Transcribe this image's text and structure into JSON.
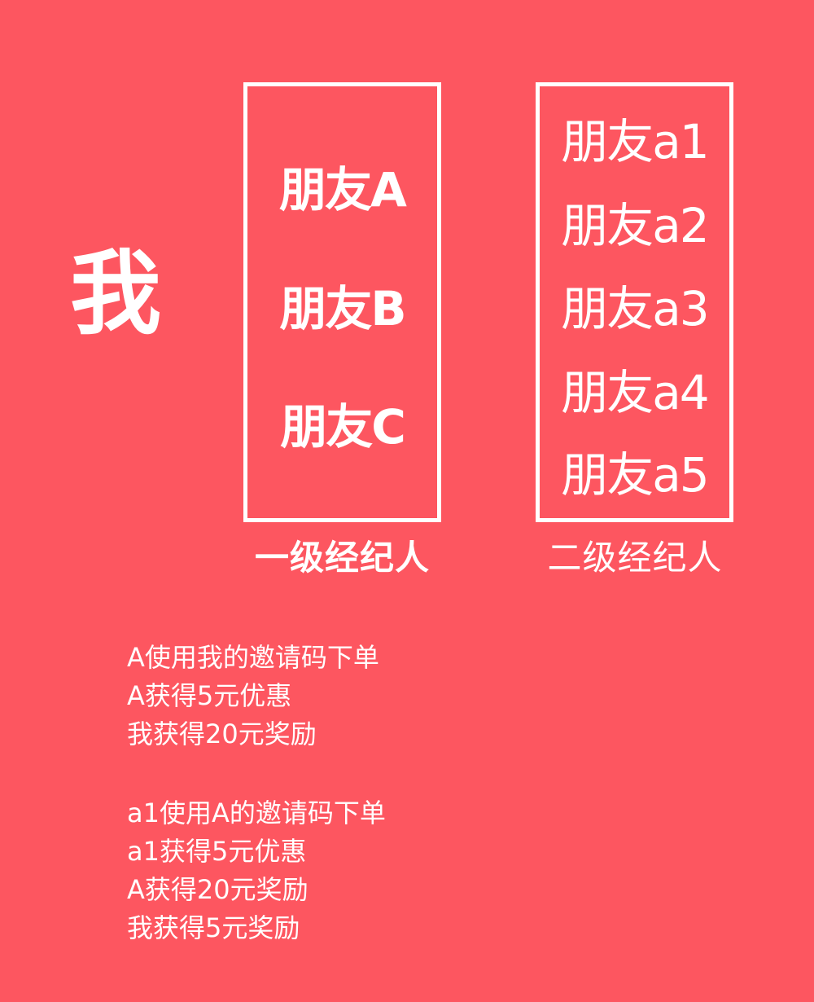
{
  "me_label": "我",
  "level1": {
    "friends": [
      "朋友A",
      "朋友B",
      "朋友C"
    ],
    "caption": "一级经纪人"
  },
  "level2": {
    "friends": [
      "朋友a1",
      "朋友a2",
      "朋友a3",
      "朋友a4",
      "朋友a5"
    ],
    "caption": "二级经纪人"
  },
  "notes_block_1": [
    "A使用我的邀请码下单",
    "A获得5元优惠",
    "我获得20元奖励"
  ],
  "notes_block_2": [
    "a1使用A的邀请码下单",
    "a1获得5元优惠",
    "A获得20元奖励",
    "我获得5元奖励"
  ],
  "colors": {
    "background": "#fd5660",
    "foreground": "#ffffff"
  }
}
